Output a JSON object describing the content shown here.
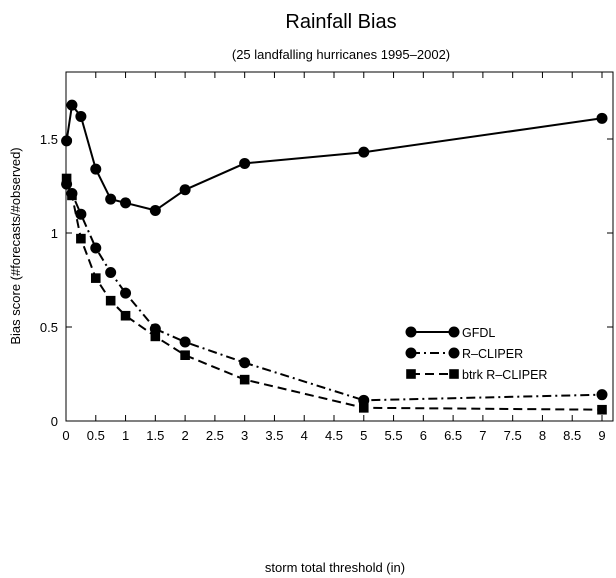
{
  "chart_data": {
    "type": "line",
    "title": "Rainfall Bias",
    "subtitle": "(25 landfalling hurricanes 1995–2002)",
    "xlabel": "storm total threshold (in)",
    "ylabel": "Bias score (#forecasts/#observed)",
    "xlim": [
      0,
      9
    ],
    "ylim": [
      0,
      1.7
    ],
    "x_ticks": [
      0,
      0.5,
      1,
      1.5,
      2,
      2.5,
      3,
      3.5,
      4,
      4.5,
      5,
      5.5,
      6,
      6.5,
      7,
      7.5,
      8,
      8.5,
      9
    ],
    "x_tick_labels": [
      "0",
      "0.5",
      "1",
      "1.5",
      "2",
      "2.5",
      "3",
      "3.5",
      "4",
      "4.5",
      "5",
      "5.5",
      "6",
      "6.5",
      "7",
      "7.5",
      "8",
      "8.5",
      "9"
    ],
    "y_ticks": [
      0,
      0.5,
      1,
      1.5
    ],
    "y_tick_labels": [
      "0",
      "0.5",
      "1",
      "1.5"
    ],
    "grid": false,
    "legend_position": "right-center",
    "series": [
      {
        "name": "GFDL",
        "line_style": "solid",
        "marker": "circle",
        "color": "#000000",
        "x": [
          0.01,
          0.1,
          0.25,
          0.5,
          0.75,
          1,
          1.5,
          2,
          3,
          5,
          9
        ],
        "y": [
          1.49,
          1.68,
          1.62,
          1.34,
          1.18,
          1.16,
          1.12,
          1.23,
          1.37,
          1.43,
          1.61
        ]
      },
      {
        "name": "R–CLIPER",
        "line_style": "dash-dot",
        "marker": "circle",
        "color": "#000000",
        "x": [
          0.01,
          0.1,
          0.25,
          0.5,
          0.75,
          1,
          1.5,
          2,
          3,
          5,
          9
        ],
        "y": [
          1.26,
          1.21,
          1.1,
          0.92,
          0.79,
          0.68,
          0.49,
          0.42,
          0.31,
          0.11,
          0.14
        ]
      },
      {
        "name": "btrk R–CLIPER",
        "line_style": "dashed",
        "marker": "square",
        "color": "#000000",
        "x": [
          0.01,
          0.1,
          0.25,
          0.5,
          0.75,
          1,
          1.5,
          2,
          3,
          5,
          9
        ],
        "y": [
          1.29,
          1.2,
          0.97,
          0.76,
          0.64,
          0.56,
          0.45,
          0.35,
          0.22,
          0.07,
          0.06
        ]
      }
    ]
  }
}
